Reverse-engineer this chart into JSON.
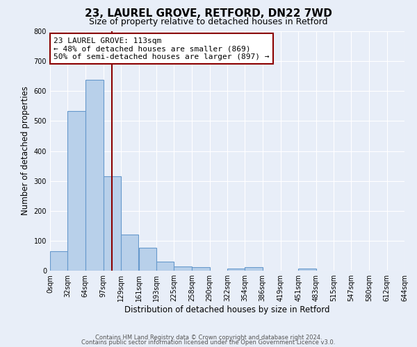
{
  "title": "23, LAUREL GROVE, RETFORD, DN22 7WD",
  "subtitle": "Size of property relative to detached houses in Retford",
  "xlabel": "Distribution of detached houses by size in Retford",
  "ylabel": "Number of detached properties",
  "bar_left_edges": [
    0,
    32,
    64,
    97,
    129,
    161,
    193,
    225,
    258,
    290,
    322,
    354,
    386,
    419,
    451,
    483,
    515,
    547,
    580,
    612
  ],
  "bar_widths": [
    32,
    32,
    33,
    32,
    32,
    32,
    32,
    33,
    32,
    32,
    32,
    32,
    33,
    32,
    32,
    32,
    32,
    33,
    32,
    32
  ],
  "bar_heights": [
    65,
    533,
    637,
    315,
    120,
    77,
    31,
    15,
    11,
    0,
    8,
    11,
    0,
    0,
    8,
    0,
    0,
    0,
    0,
    0
  ],
  "bar_color": "#b8d0ea",
  "bar_edge_color": "#6699cc",
  "property_line_x": 113,
  "property_line_color": "#8b0000",
  "xlim": [
    0,
    644
  ],
  "ylim": [
    0,
    800
  ],
  "yticks": [
    0,
    100,
    200,
    300,
    400,
    500,
    600,
    700,
    800
  ],
  "xtick_labels": [
    "0sqm",
    "32sqm",
    "64sqm",
    "97sqm",
    "129sqm",
    "161sqm",
    "193sqm",
    "225sqm",
    "258sqm",
    "290sqm",
    "322sqm",
    "354sqm",
    "386sqm",
    "419sqm",
    "451sqm",
    "483sqm",
    "515sqm",
    "547sqm",
    "580sqm",
    "612sqm",
    "644sqm"
  ],
  "xtick_positions": [
    0,
    32,
    64,
    97,
    129,
    161,
    193,
    225,
    258,
    290,
    322,
    354,
    386,
    419,
    451,
    483,
    515,
    547,
    580,
    612,
    644
  ],
  "annotation_title": "23 LAUREL GROVE: 113sqm",
  "annotation_line1": "← 48% of detached houses are smaller (869)",
  "annotation_line2": "50% of semi-detached houses are larger (897) →",
  "annotation_box_color": "#ffffff",
  "annotation_box_edge_color": "#8b0000",
  "footer_line1": "Contains HM Land Registry data © Crown copyright and database right 2024.",
  "footer_line2": "Contains public sector information licensed under the Open Government Licence v3.0.",
  "background_color": "#e8eef8",
  "grid_color": "#ffffff",
  "title_fontsize": 11,
  "subtitle_fontsize": 9,
  "axis_label_fontsize": 8.5,
  "tick_fontsize": 7,
  "annotation_fontsize": 8,
  "footer_fontsize": 6
}
